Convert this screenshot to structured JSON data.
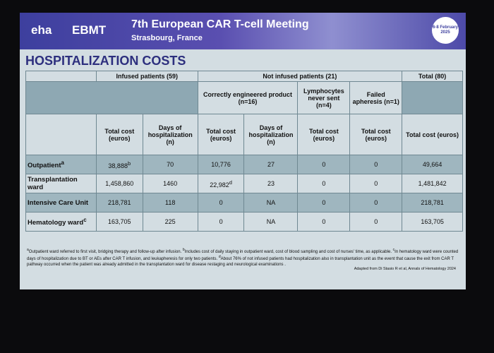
{
  "header": {
    "logo_left": "eha",
    "logo_right": "EBMT",
    "title": "7th European CAR T-cell Meeting",
    "subtitle": "Strasbourg, France",
    "date": "6-8 February 2025"
  },
  "slide_title": "HOSPITALIZATION COSTS",
  "table": {
    "groups": [
      "Infused patients (59)",
      "Not infused patients (21)",
      "Total (80)"
    ],
    "subgroups": [
      "Correctly engineered product (n=16)",
      "Lymphocytes never sent (n=4)",
      "Failed apheresis (n=1)"
    ],
    "columns": [
      "Total cost (euros)",
      "Days of hospitalization (n)",
      "Total cost (euros)",
      "Days of hospitalization (n)",
      "Total cost (euros)",
      "Total cost (euros)",
      "Total cost (euros)"
    ],
    "rows": [
      {
        "label": "Outpatient",
        "sup": "a",
        "cells": [
          {
            "text": "38,888",
            "sup": "b"
          },
          "70",
          "10,776",
          "27",
          "0",
          "0",
          "49,664"
        ]
      },
      {
        "label": "Transplantation ward",
        "cells": [
          "1,458,860",
          "1460",
          {
            "text": "22,982",
            "sup": "d"
          },
          "23",
          "0",
          "0",
          "1,481,842"
        ]
      },
      {
        "label": "Intensive Care Unit",
        "cells": [
          "218,781",
          "118",
          "0",
          "NA",
          "0",
          "0",
          "218,781"
        ]
      },
      {
        "label": "Hematology ward",
        "sup": "c",
        "cells": [
          "163,705",
          "225",
          "0",
          "NA",
          "0",
          "0",
          "163,705"
        ]
      }
    ]
  },
  "footnotes": [
    {
      "sup": "a",
      "text": "Outpatient ward referred to first visit, bridging therapy and follow-up after infusion. "
    },
    {
      "sup": "b",
      "text": "Includes cost of daily staying in outpatient ward, cost of blood sampling and cost of nurses' time, as applicable. "
    },
    {
      "sup": "c",
      "text": "In hematology ward were counted days of hospitalization due to BT or AEs after CAR T infusion, and leukapheresis for only two patients. "
    },
    {
      "sup": "d",
      "text": "About 76% of not infused patients had hospitalization also in transplantation unit as the event that cause the exit from CAR T pathway occurred when the patient was already admitted in the transplantation ward for disease restaging and neurological examinations ."
    }
  ],
  "source": "Adapted from Di Stasio R et al, Annals of Hematology 2024"
}
